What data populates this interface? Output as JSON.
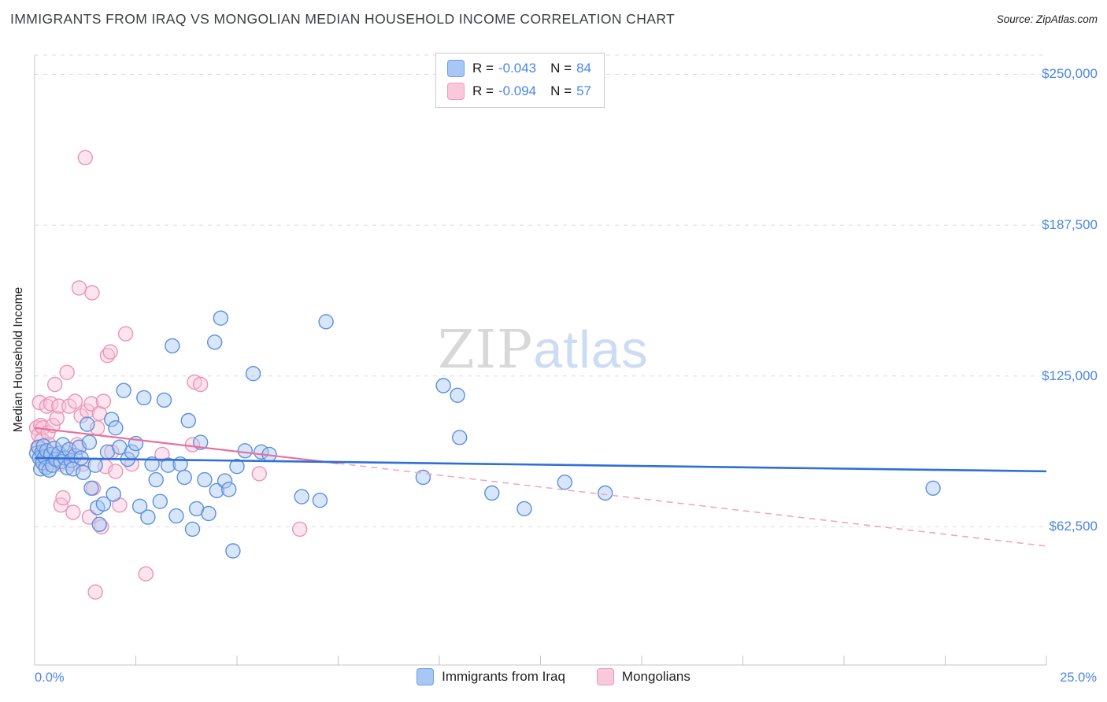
{
  "header": {
    "title": "IMMIGRANTS FROM IRAQ VS MONGOLIAN MEDIAN HOUSEHOLD INCOME CORRELATION CHART",
    "source": "Source: ZipAtlas.com"
  },
  "legend_box": {
    "rows": [
      {
        "series": "Immigrants from Iraq",
        "r_label": "R =",
        "r_value": "-0.043",
        "n_label": "N =",
        "n_value": "84"
      },
      {
        "series": "Mongolians",
        "r_label": "R =",
        "r_value": "-0.094",
        "n_label": "N =",
        "n_value": "57"
      }
    ]
  },
  "watermark": {
    "part1": "ZIP",
    "part2": "atlas"
  },
  "x_axis": {
    "left_label": "0.0%",
    "right_label": "25.0%"
  },
  "colors": {
    "axis_label_blue": "#4a86e8",
    "grid": "#dcdcdc",
    "iraq_fill": "#a9c7f4",
    "iraq_stroke": "#5c8fdd",
    "iraq_trend": "#2e6fd8",
    "mongolian_fill": "#f9c6d9",
    "mongolian_stroke": "#ec93b7",
    "mongolian_trend": "#e8709f"
  },
  "chart_data": {
    "type": "scatter",
    "title": "IMMIGRANTS FROM IRAQ VS MONGOLIAN MEDIAN HOUSEHOLD INCOME CORRELATION CHART",
    "xlabel": "",
    "ylabel": "Median Household Income",
    "xlim": [
      0,
      25
    ],
    "ylim": [
      0,
      258000
    ],
    "grid": "horizontal-dashed",
    "legend_position": "top-center",
    "xticks": [
      0,
      2.5,
      5,
      7.5,
      10,
      12.5,
      15,
      17.5,
      20,
      22.5,
      25
    ],
    "yticks": [
      {
        "value": 250000,
        "label": "$250,000"
      },
      {
        "value": 187500,
        "label": "$187,500"
      },
      {
        "value": 125000,
        "label": "$125,000"
      },
      {
        "value": 62500,
        "label": "$62,500"
      }
    ],
    "series": [
      {
        "name": "Immigrants from Iraq",
        "R": -0.043,
        "N": 84,
        "marker_fill": "#a9c7f4",
        "marker_stroke": "#5c8fdd",
        "trend": {
          "start": [
            0,
            91000
          ],
          "end": [
            25,
            85500
          ],
          "color": "#2e6fd8",
          "style": "solid"
        },
        "points": [
          [
            0.05,
            93000
          ],
          [
            0.1,
            95500
          ],
          [
            0.12,
            91000
          ],
          [
            0.15,
            86500
          ],
          [
            0.18,
            93500
          ],
          [
            0.2,
            89000
          ],
          [
            0.22,
            96000
          ],
          [
            0.25,
            91500
          ],
          [
            0.28,
            87000
          ],
          [
            0.3,
            94000
          ],
          [
            0.36,
            86000
          ],
          [
            0.4,
            92500
          ],
          [
            0.44,
            88000
          ],
          [
            0.48,
            95000
          ],
          [
            0.52,
            90500
          ],
          [
            0.6,
            93000
          ],
          [
            0.65,
            89500
          ],
          [
            0.7,
            96500
          ],
          [
            0.75,
            91000
          ],
          [
            0.8,
            87000
          ],
          [
            0.85,
            94500
          ],
          [
            0.9,
            90000
          ],
          [
            0.95,
            86500
          ],
          [
            1.0,
            92000
          ],
          [
            1.1,
            95500
          ],
          [
            1.15,
            91000
          ],
          [
            1.2,
            85000
          ],
          [
            1.3,
            105000
          ],
          [
            1.35,
            97500
          ],
          [
            1.4,
            78500
          ],
          [
            1.5,
            88000
          ],
          [
            1.55,
            70500
          ],
          [
            1.6,
            63500
          ],
          [
            1.7,
            72000
          ],
          [
            1.8,
            93500
          ],
          [
            1.9,
            107000
          ],
          [
            1.95,
            76000
          ],
          [
            2.0,
            103500
          ],
          [
            2.1,
            95500
          ],
          [
            2.2,
            119000
          ],
          [
            2.3,
            90500
          ],
          [
            2.4,
            93500
          ],
          [
            2.5,
            97000
          ],
          [
            2.6,
            71000
          ],
          [
            2.7,
            116000
          ],
          [
            2.8,
            66500
          ],
          [
            2.9,
            88500
          ],
          [
            3.0,
            82000
          ],
          [
            3.1,
            73000
          ],
          [
            3.2,
            115000
          ],
          [
            3.3,
            88000
          ],
          [
            3.4,
            137500
          ],
          [
            3.5,
            67000
          ],
          [
            3.6,
            88500
          ],
          [
            3.7,
            83000
          ],
          [
            3.8,
            106500
          ],
          [
            3.9,
            61500
          ],
          [
            4.0,
            70000
          ],
          [
            4.1,
            97500
          ],
          [
            4.2,
            82000
          ],
          [
            4.3,
            68000
          ],
          [
            4.45,
            139000
          ],
          [
            4.5,
            77500
          ],
          [
            4.6,
            149000
          ],
          [
            4.7,
            81500
          ],
          [
            4.8,
            78000
          ],
          [
            4.9,
            52500
          ],
          [
            5.0,
            87500
          ],
          [
            5.2,
            94000
          ],
          [
            5.4,
            126000
          ],
          [
            5.6,
            93500
          ],
          [
            5.8,
            92500
          ],
          [
            6.6,
            75000
          ],
          [
            7.05,
            73500
          ],
          [
            7.2,
            147500
          ],
          [
            9.6,
            83000
          ],
          [
            10.1,
            121000
          ],
          [
            10.45,
            117000
          ],
          [
            10.5,
            99500
          ],
          [
            11.3,
            76500
          ],
          [
            12.1,
            70000
          ],
          [
            13.1,
            81000
          ],
          [
            14.1,
            76500
          ],
          [
            22.2,
            78500
          ]
        ]
      },
      {
        "name": "Mongolians",
        "R": -0.094,
        "N": 57,
        "marker_fill": "#f9c6d9",
        "marker_stroke": "#ec93b7",
        "trend": {
          "start": [
            0,
            103500
          ],
          "end": [
            25,
            54500
          ],
          "solid_until": 7.5,
          "color": "#e8709f",
          "dashed_color": "#f0a6c2",
          "style": "solid-then-dashed"
        },
        "points": [
          [
            0.05,
            103500
          ],
          [
            0.08,
            95500
          ],
          [
            0.1,
            100500
          ],
          [
            0.12,
            114000
          ],
          [
            0.15,
            104500
          ],
          [
            0.18,
            98500
          ],
          [
            0.2,
            103500
          ],
          [
            0.22,
            93500
          ],
          [
            0.25,
            88500
          ],
          [
            0.28,
            90500
          ],
          [
            0.3,
            112500
          ],
          [
            0.33,
            101500
          ],
          [
            0.36,
            96500
          ],
          [
            0.4,
            113500
          ],
          [
            0.45,
            104500
          ],
          [
            0.5,
            121500
          ],
          [
            0.55,
            107500
          ],
          [
            0.6,
            112500
          ],
          [
            0.62,
            88500
          ],
          [
            0.65,
            71500
          ],
          [
            0.7,
            74500
          ],
          [
            0.75,
            93500
          ],
          [
            0.8,
            126500
          ],
          [
            0.85,
            112500
          ],
          [
            0.9,
            88500
          ],
          [
            0.95,
            68500
          ],
          [
            1.0,
            114500
          ],
          [
            1.05,
            96500
          ],
          [
            1.1,
            161500
          ],
          [
            1.15,
            108500
          ],
          [
            1.2,
            88500
          ],
          [
            1.25,
            215500
          ],
          [
            1.3,
            110500
          ],
          [
            1.35,
            66500
          ],
          [
            1.4,
            113500
          ],
          [
            1.42,
            159500
          ],
          [
            1.45,
            78500
          ],
          [
            1.5,
            35500
          ],
          [
            1.55,
            103500
          ],
          [
            1.6,
            109500
          ],
          [
            1.65,
            62500
          ],
          [
            1.7,
            114500
          ],
          [
            1.75,
            87500
          ],
          [
            1.8,
            133500
          ],
          [
            1.87,
            135000
          ],
          [
            1.9,
            93500
          ],
          [
            2.0,
            85500
          ],
          [
            2.1,
            71500
          ],
          [
            2.25,
            142500
          ],
          [
            2.4,
            88500
          ],
          [
            2.75,
            43000
          ],
          [
            3.15,
            92500
          ],
          [
            3.9,
            96500
          ],
          [
            3.95,
            122500
          ],
          [
            4.1,
            121500
          ],
          [
            5.55,
            84500
          ],
          [
            6.55,
            61500
          ]
        ]
      }
    ]
  }
}
